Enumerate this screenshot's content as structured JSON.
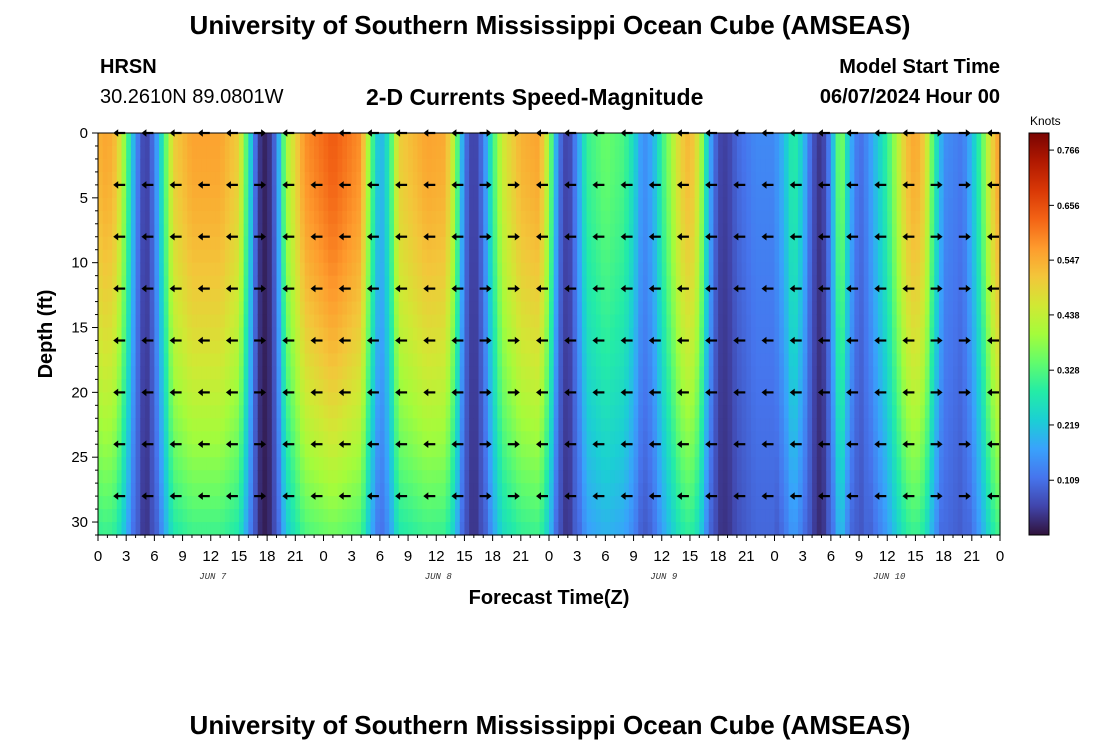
{
  "header": {
    "title": "University of Southern Mississippi Ocean Cube (AMSEAS)",
    "station": "HRSN",
    "coords": "30.2610N  89.0801W",
    "product": "2-D Currents Speed-Magnitude",
    "start_label": "Model Start Time",
    "start_value": "06/07/2024 Hour 00"
  },
  "footer": {
    "title": "University of Southern Mississippi Ocean Cube (AMSEAS)"
  },
  "chart_data": {
    "type": "heatmap",
    "title": "2-D Currents Speed-Magnitude",
    "xlabel": "Forecast Time(Z)",
    "ylabel": "Depth (ft)",
    "x_unit": "hours from model start",
    "xlim": [
      0,
      96
    ],
    "ylim": [
      31,
      0
    ],
    "x_ticks": [
      0,
      3,
      6,
      9,
      12,
      15,
      18,
      21,
      24,
      27,
      30,
      33,
      36,
      39,
      42,
      45,
      48,
      51,
      54,
      57,
      60,
      63,
      66,
      69,
      72,
      75,
      78,
      81,
      84,
      87,
      90,
      93,
      96
    ],
    "x_tick_labels": [
      "0",
      "3",
      "6",
      "9",
      "12",
      "15",
      "18",
      "21",
      "0",
      "3",
      "6",
      "9",
      "12",
      "15",
      "18",
      "21",
      "0",
      "3",
      "6",
      "9",
      "12",
      "15",
      "18",
      "21",
      "0",
      "3",
      "6",
      "9",
      "12",
      "15",
      "18",
      "21",
      "0"
    ],
    "y_ticks": [
      0,
      5,
      10,
      15,
      20,
      25,
      30
    ],
    "y_tick_labels": [
      "0",
      "5",
      "10",
      "15",
      "20",
      "25",
      "30"
    ],
    "date_labels": [
      {
        "hour": 12,
        "text": "JUN 7"
      },
      {
        "hour": 36,
        "text": "JUN 8"
      },
      {
        "hour": 60,
        "text": "JUN 9"
      },
      {
        "hour": 84,
        "text": "JUN 10"
      }
    ],
    "colorbar": {
      "unit": "Knots",
      "min": 0.0,
      "max": 0.8,
      "ticks": [
        0.109,
        0.219,
        0.328,
        0.438,
        0.547,
        0.656,
        0.766
      ],
      "colors": [
        "#30123b",
        "#4145ab",
        "#4675ed",
        "#39a2fc",
        "#1bcfd4",
        "#24eca6",
        "#61fc6c",
        "#a4fc3b",
        "#d1e834",
        "#f3c63a",
        "#fe9b2d",
        "#f36315",
        "#d93806",
        "#b11901",
        "#7a0402"
      ]
    },
    "time_profile": [
      {
        "h": 0,
        "s": 0.54
      },
      {
        "h": 1,
        "s": 0.56
      },
      {
        "h": 2,
        "s": 0.52
      },
      {
        "h": 3,
        "s": 0.35
      },
      {
        "h": 4,
        "s": 0.15
      },
      {
        "h": 5,
        "s": 0.04
      },
      {
        "h": 6,
        "s": 0.12
      },
      {
        "h": 7,
        "s": 0.3
      },
      {
        "h": 8,
        "s": 0.5
      },
      {
        "h": 10,
        "s": 0.56
      },
      {
        "h": 13,
        "s": 0.56
      },
      {
        "h": 15,
        "s": 0.5
      },
      {
        "h": 16,
        "s": 0.28
      },
      {
        "h": 17,
        "s": 0.05
      },
      {
        "h": 18,
        "s": 0.01
      },
      {
        "h": 19,
        "s": 0.12
      },
      {
        "h": 20,
        "s": 0.4
      },
      {
        "h": 22,
        "s": 0.58
      },
      {
        "h": 25,
        "s": 0.64
      },
      {
        "h": 28,
        "s": 0.58
      },
      {
        "h": 29,
        "s": 0.35
      },
      {
        "h": 30,
        "s": 0.18
      },
      {
        "h": 31,
        "s": 0.28
      },
      {
        "h": 32,
        "s": 0.5
      },
      {
        "h": 35,
        "s": 0.56
      },
      {
        "h": 37,
        "s": 0.55
      },
      {
        "h": 38,
        "s": 0.4
      },
      {
        "h": 39,
        "s": 0.12
      },
      {
        "h": 40,
        "s": 0.04
      },
      {
        "h": 41,
        "s": 0.12
      },
      {
        "h": 42,
        "s": 0.3
      },
      {
        "h": 43,
        "s": 0.45
      },
      {
        "h": 45,
        "s": 0.54
      },
      {
        "h": 47,
        "s": 0.56
      },
      {
        "h": 48,
        "s": 0.4
      },
      {
        "h": 49,
        "s": 0.12
      },
      {
        "h": 50,
        "s": 0.04
      },
      {
        "h": 51,
        "s": 0.15
      },
      {
        "h": 52,
        "s": 0.3
      },
      {
        "h": 54,
        "s": 0.35
      },
      {
        "h": 56,
        "s": 0.32
      },
      {
        "h": 57,
        "s": 0.25
      },
      {
        "h": 58,
        "s": 0.14
      },
      {
        "h": 59,
        "s": 0.18
      },
      {
        "h": 60,
        "s": 0.3
      },
      {
        "h": 62,
        "s": 0.5
      },
      {
        "h": 63,
        "s": 0.54
      },
      {
        "h": 64,
        "s": 0.45
      },
      {
        "h": 65,
        "s": 0.2
      },
      {
        "h": 66,
        "s": 0.06
      },
      {
        "h": 67,
        "s": 0.05
      },
      {
        "h": 68,
        "s": 0.1
      },
      {
        "h": 70,
        "s": 0.14
      },
      {
        "h": 72,
        "s": 0.14
      },
      {
        "h": 73,
        "s": 0.2
      },
      {
        "h": 74,
        "s": 0.3
      },
      {
        "h": 75,
        "s": 0.22
      },
      {
        "h": 76,
        "s": 0.08
      },
      {
        "h": 77,
        "s": 0.03
      },
      {
        "h": 78,
        "s": 0.15
      },
      {
        "h": 79,
        "s": 0.4
      },
      {
        "h": 80,
        "s": 0.2
      },
      {
        "h": 81,
        "s": 0.1
      },
      {
        "h": 82,
        "s": 0.15
      },
      {
        "h": 84,
        "s": 0.3
      },
      {
        "h": 86,
        "s": 0.52
      },
      {
        "h": 87,
        "s": 0.56
      },
      {
        "h": 88,
        "s": 0.5
      },
      {
        "h": 89,
        "s": 0.3
      },
      {
        "h": 90,
        "s": 0.15
      },
      {
        "h": 92,
        "s": 0.12
      },
      {
        "h": 93,
        "s": 0.2
      },
      {
        "h": 94,
        "s": 0.32
      },
      {
        "h": 95,
        "s": 0.48
      },
      {
        "h": 96,
        "s": 0.58
      }
    ],
    "arrows": {
      "depths": [
        0,
        4,
        8,
        12,
        16,
        20,
        24,
        28
      ],
      "hours": [
        3,
        6,
        9,
        12,
        15,
        18,
        21,
        24,
        27,
        30,
        33,
        36,
        39,
        42,
        45,
        48,
        51,
        54,
        57,
        60,
        63,
        66,
        69,
        72,
        75,
        78,
        81,
        84,
        87,
        90,
        93,
        96
      ],
      "direction_note": "westward in most columns; eastward near 18-19h, 42-45h, 90-93h"
    }
  }
}
